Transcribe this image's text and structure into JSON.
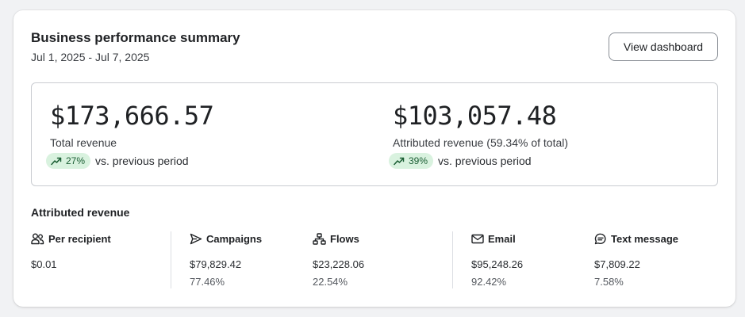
{
  "header": {
    "title": "Business performance summary",
    "date_range": "Jul 1, 2025 - Jul 7, 2025",
    "view_button": "View dashboard"
  },
  "summary": {
    "total": {
      "value": "$173,666.57",
      "label": "Total revenue",
      "change": "27%",
      "change_text": "vs. previous period"
    },
    "attributed": {
      "value": "$103,057.48",
      "label": "Attributed revenue (59.34% of total)",
      "change": "39%",
      "change_text": "vs. previous period"
    }
  },
  "attributed_section": {
    "title": "Attributed revenue",
    "per_recipient": {
      "name": "Per recipient",
      "icon": "users-icon",
      "amount": "$0.01"
    },
    "campaigns": {
      "name": "Campaigns",
      "icon": "send-icon",
      "amount": "$79,829.42",
      "percent": "77.46%"
    },
    "flows": {
      "name": "Flows",
      "icon": "flow-icon",
      "amount": "$23,228.06",
      "percent": "22.54%"
    },
    "email": {
      "name": "Email",
      "icon": "mail-icon",
      "amount": "$95,248.26",
      "percent": "92.42%"
    },
    "text_message": {
      "name": "Text message",
      "icon": "chat-icon",
      "amount": "$7,809.22",
      "percent": "7.58%"
    }
  },
  "colors": {
    "badge_bg": "#d9f2df",
    "badge_text": "#1b5e34",
    "border": "#c9ccd1",
    "text_primary": "#1f2124"
  }
}
